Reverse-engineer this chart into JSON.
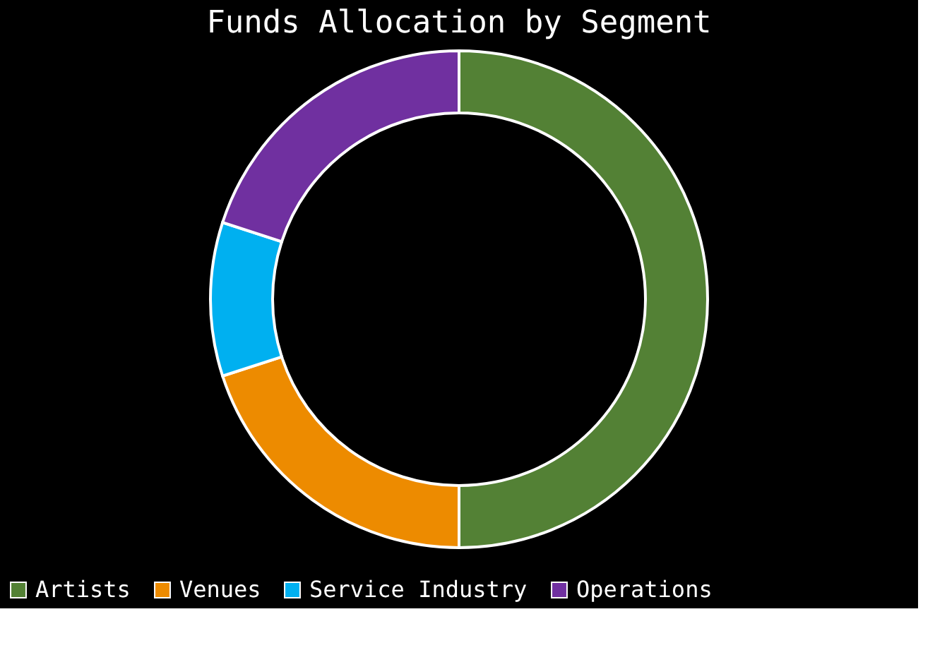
{
  "chart_data": {
    "type": "donut",
    "title": "Funds Allocation by Segment",
    "categories": [
      "Artists",
      "Venues",
      "Service Industry",
      "Operations"
    ],
    "values": [
      50,
      20,
      10,
      20
    ],
    "colors": [
      "#538135",
      "#ed8b00",
      "#00b0f0",
      "#7030a0"
    ],
    "legend": "bottom"
  }
}
